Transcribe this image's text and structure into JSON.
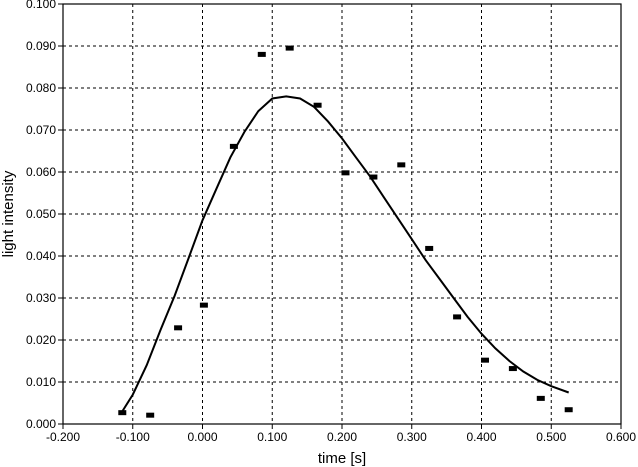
{
  "chart_data": {
    "type": "scatter",
    "xlabel": "time [s]",
    "ylabel": "light intensity",
    "xlim": [
      -0.2,
      0.6
    ],
    "ylim": [
      0.0,
      0.1
    ],
    "grid": true,
    "x_ticks": [
      -0.2,
      -0.1,
      0.0,
      0.1,
      0.2,
      0.3,
      0.4,
      0.5,
      0.6
    ],
    "x_tick_labels": [
      "-0.200",
      "-0.100",
      "0.000",
      "0.100",
      "0.200",
      "0.300",
      "0.400",
      "0.500",
      "0.600"
    ],
    "y_ticks": [
      0.0,
      0.01,
      0.02,
      0.03,
      0.04,
      0.05,
      0.06,
      0.07,
      0.08,
      0.09,
      0.1
    ],
    "y_tick_labels": [
      "0.000",
      "0.010",
      "0.020",
      "0.030",
      "0.040",
      "0.050",
      "0.060",
      "0.070",
      "0.080",
      "0.090",
      "0.100"
    ],
    "series": [
      {
        "type": "scatter",
        "marker": "square",
        "color": "#000000",
        "points": [
          [
            -0.115,
            0.0027
          ],
          [
            -0.075,
            0.0021
          ],
          [
            -0.035,
            0.0229
          ],
          [
            0.002,
            0.0283
          ],
          [
            0.045,
            0.0661
          ],
          [
            0.085,
            0.088
          ],
          [
            0.125,
            0.0895
          ],
          [
            0.165,
            0.0759
          ],
          [
            0.205,
            0.0598
          ],
          [
            0.245,
            0.0588
          ],
          [
            0.285,
            0.0617
          ],
          [
            0.325,
            0.0418
          ],
          [
            0.365,
            0.0255
          ],
          [
            0.405,
            0.0152
          ],
          [
            0.445,
            0.0132
          ],
          [
            0.485,
            0.0061
          ],
          [
            0.525,
            0.0034
          ]
        ]
      },
      {
        "type": "line",
        "color": "#000000",
        "points": [
          [
            -0.115,
            0.003
          ],
          [
            -0.1,
            0.007
          ],
          [
            -0.08,
            0.014
          ],
          [
            -0.06,
            0.0225
          ],
          [
            -0.04,
            0.0305
          ],
          [
            -0.02,
            0.0395
          ],
          [
            0.0,
            0.0485
          ],
          [
            0.02,
            0.056
          ],
          [
            0.04,
            0.0635
          ],
          [
            0.06,
            0.0695
          ],
          [
            0.08,
            0.0745
          ],
          [
            0.1,
            0.0775
          ],
          [
            0.12,
            0.078
          ],
          [
            0.14,
            0.0775
          ],
          [
            0.16,
            0.0755
          ],
          [
            0.18,
            0.072
          ],
          [
            0.2,
            0.068
          ],
          [
            0.22,
            0.0635
          ],
          [
            0.24,
            0.059
          ],
          [
            0.26,
            0.054
          ],
          [
            0.28,
            0.049
          ],
          [
            0.3,
            0.044
          ],
          [
            0.32,
            0.039
          ],
          [
            0.34,
            0.0345
          ],
          [
            0.36,
            0.03
          ],
          [
            0.38,
            0.0255
          ],
          [
            0.4,
            0.0215
          ],
          [
            0.42,
            0.018
          ],
          [
            0.44,
            0.015
          ],
          [
            0.46,
            0.0125
          ],
          [
            0.48,
            0.0105
          ],
          [
            0.5,
            0.009
          ],
          [
            0.525,
            0.0075
          ]
        ]
      }
    ]
  }
}
